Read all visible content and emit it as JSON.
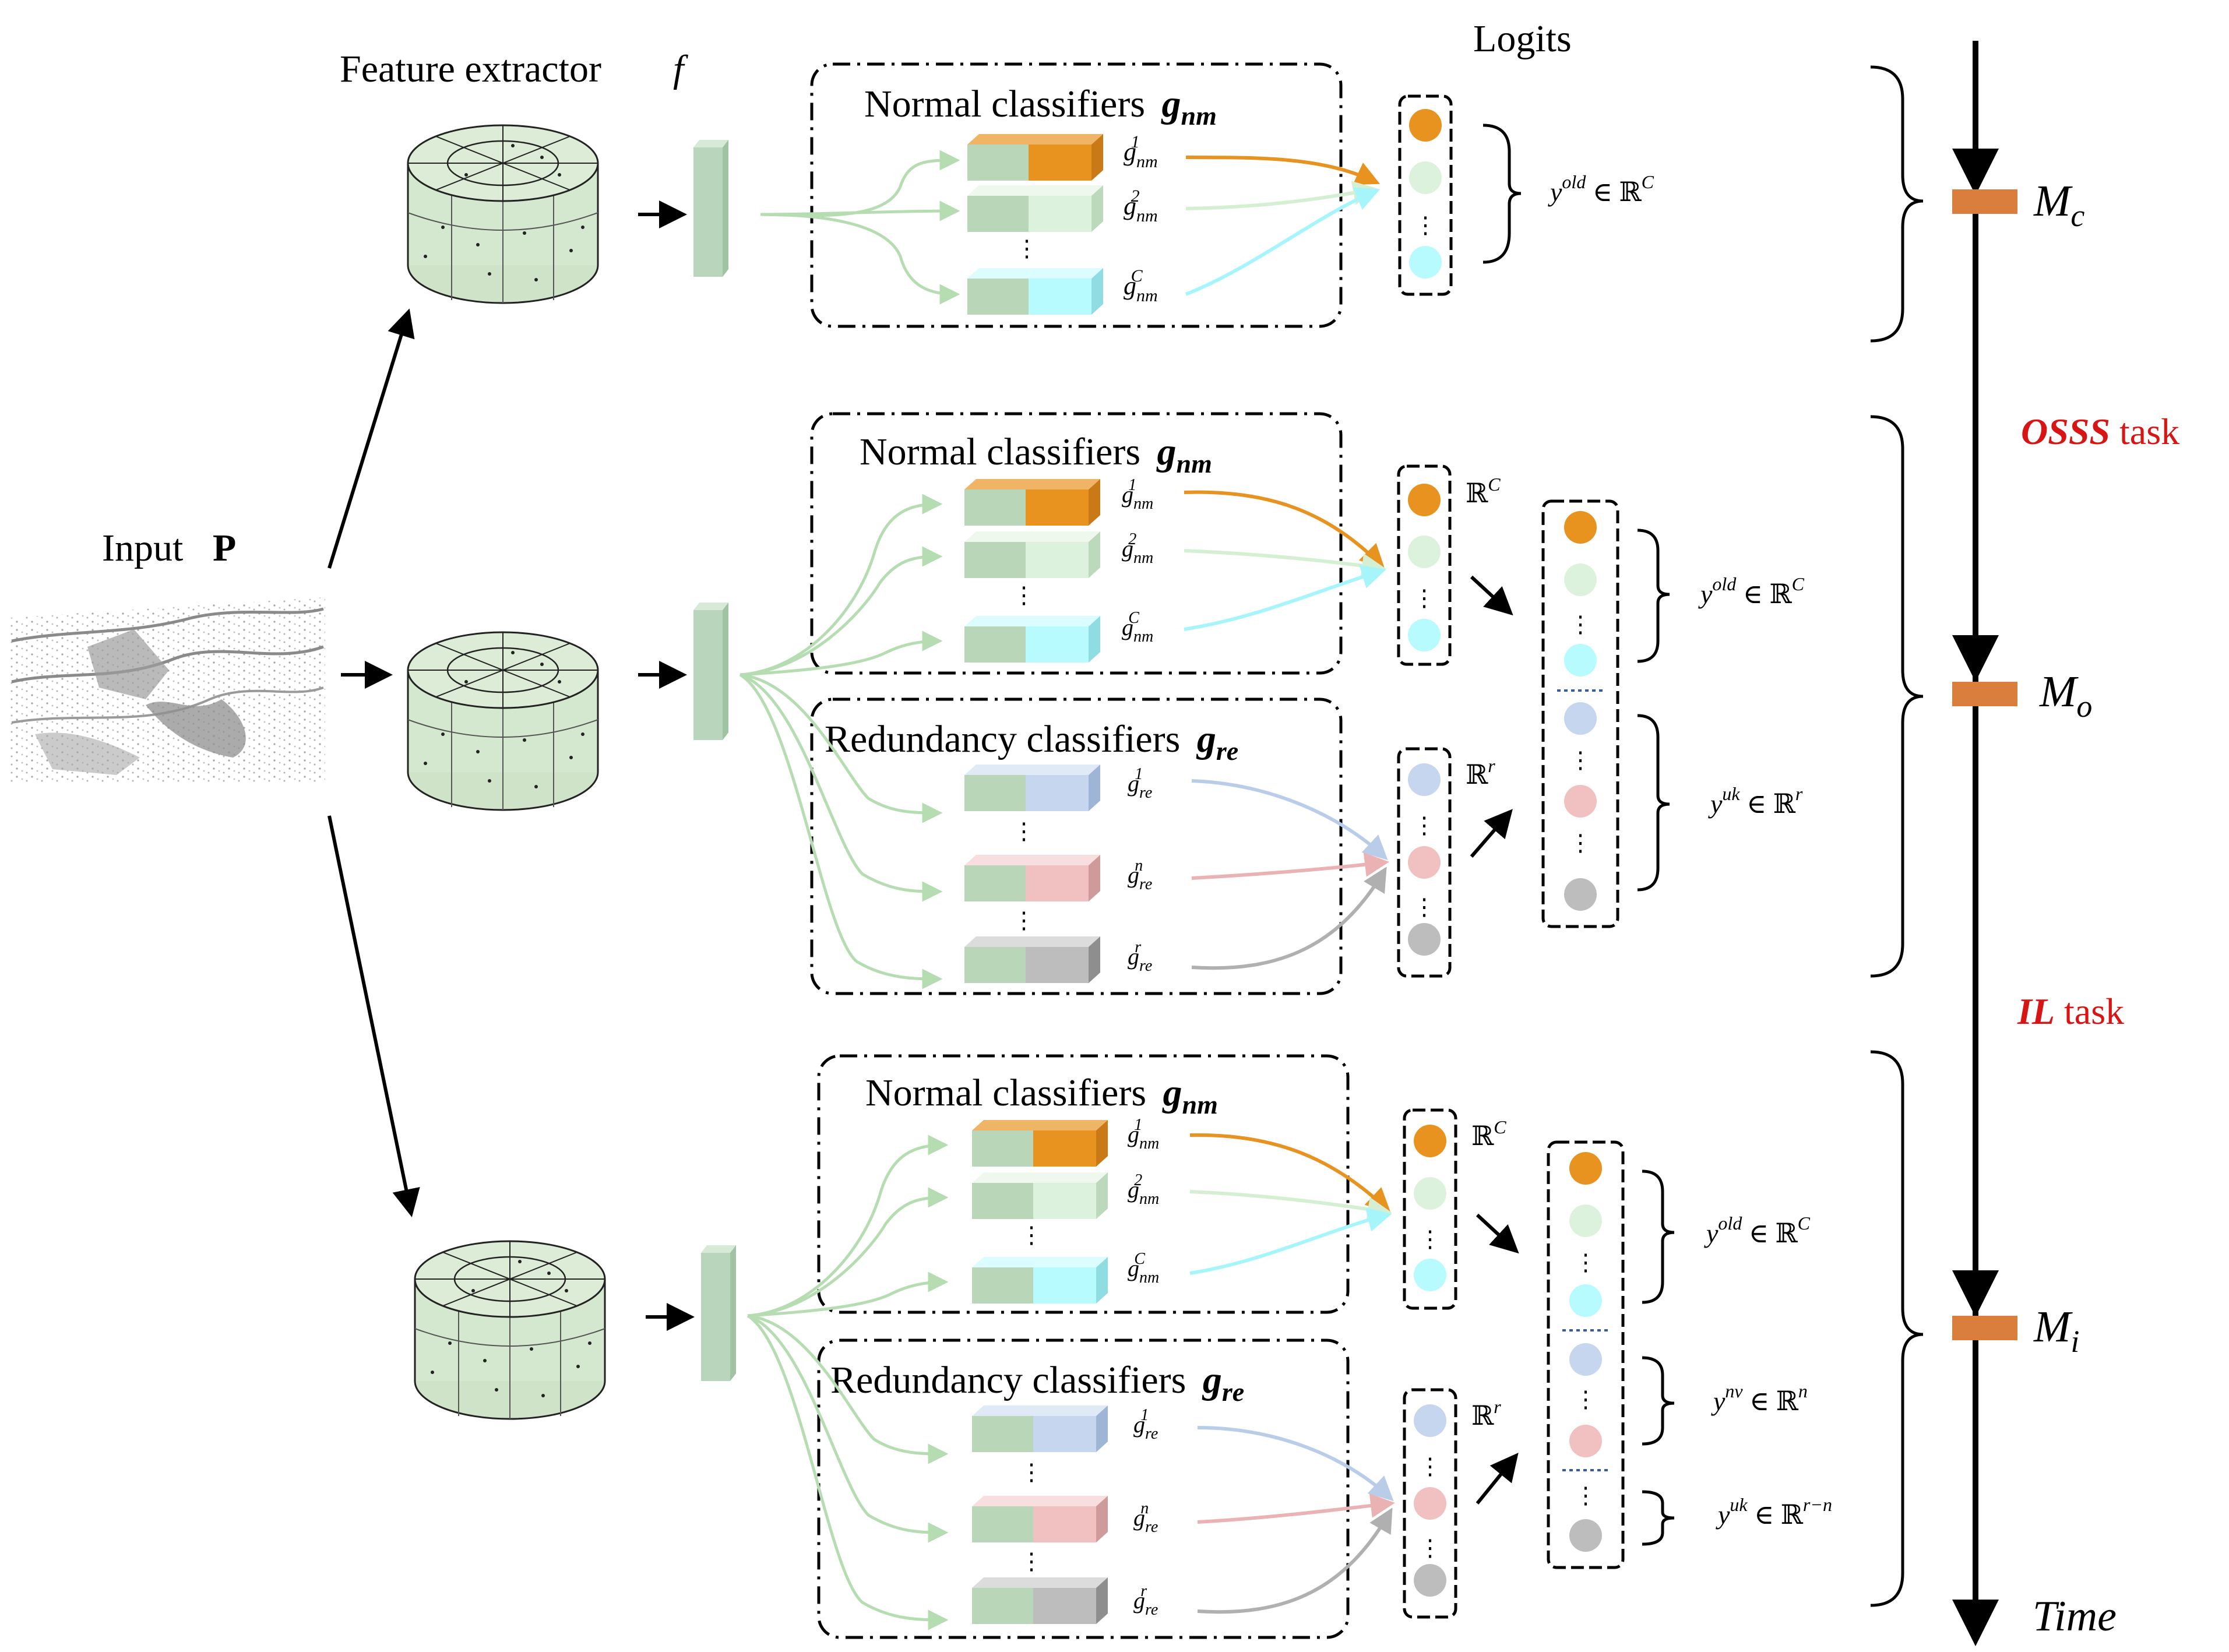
{
  "title": "Logits",
  "input_label": "Input",
  "input_symbol": "P",
  "feature_extractor_label": "Feature extractor",
  "feature_extractor_symbol": "f",
  "normal_classifiers_label": "Normal classifiers",
  "normal_classifiers_symbol": "g",
  "normal_classifiers_sub": "nm",
  "redundancy_classifiers_label": "Redundancy classifiers",
  "redundancy_classifiers_symbol": "g",
  "redundancy_classifiers_sub": "re",
  "classifier_labels": {
    "nm1": {
      "base": "g",
      "sub": "nm",
      "sup": "1"
    },
    "nm2": {
      "base": "g",
      "sub": "nm",
      "sup": "2"
    },
    "nmC": {
      "base": "g",
      "sub": "nm",
      "sup": "C"
    },
    "re1": {
      "base": "g",
      "sub": "re",
      "sup": "1"
    },
    "ren": {
      "base": "g",
      "sub": "re",
      "sup": "n"
    },
    "rer": {
      "base": "g",
      "sub": "re",
      "sup": "r"
    }
  },
  "space_labels": {
    "RC": {
      "base": "ℝ",
      "sup": "C"
    },
    "Rr": {
      "base": "ℝ",
      "sup": "r"
    }
  },
  "logit_labels": {
    "y_old": {
      "base": "y",
      "sup": "old",
      "rel": " ∈ ℝ",
      "rsup": "C"
    },
    "y_uk_r": {
      "base": "y",
      "sup": "uk",
      "rel": " ∈ ℝ",
      "rsup": "r"
    },
    "y_nv": {
      "base": "y",
      "sup": "nv",
      "rel": " ∈ ℝ",
      "rsup": "n"
    },
    "y_uk_rn": {
      "base": "y",
      "sup": "uk",
      "rel": " ∈ ℝ",
      "rsup": "r−n"
    }
  },
  "timeline": {
    "models": [
      {
        "base": "M",
        "sub": "c"
      },
      {
        "base": "M",
        "sub": "o"
      },
      {
        "base": "M",
        "sub": "i"
      }
    ],
    "task1_name": "OSSS",
    "task1_suffix": " task",
    "task2_name": "IL",
    "task2_suffix": " task",
    "axis_label": "Time"
  },
  "colors": {
    "orange": "#e8921f",
    "light_green": "#ddf2dc",
    "cyan": "#b8fbff",
    "blue": "#c5d6ee",
    "pink": "#f1c1c1",
    "gray": "#bdbdbd",
    "feature_green": "#b9d6bd",
    "marker": "#d97e3c",
    "task_red": "#d81515"
  }
}
